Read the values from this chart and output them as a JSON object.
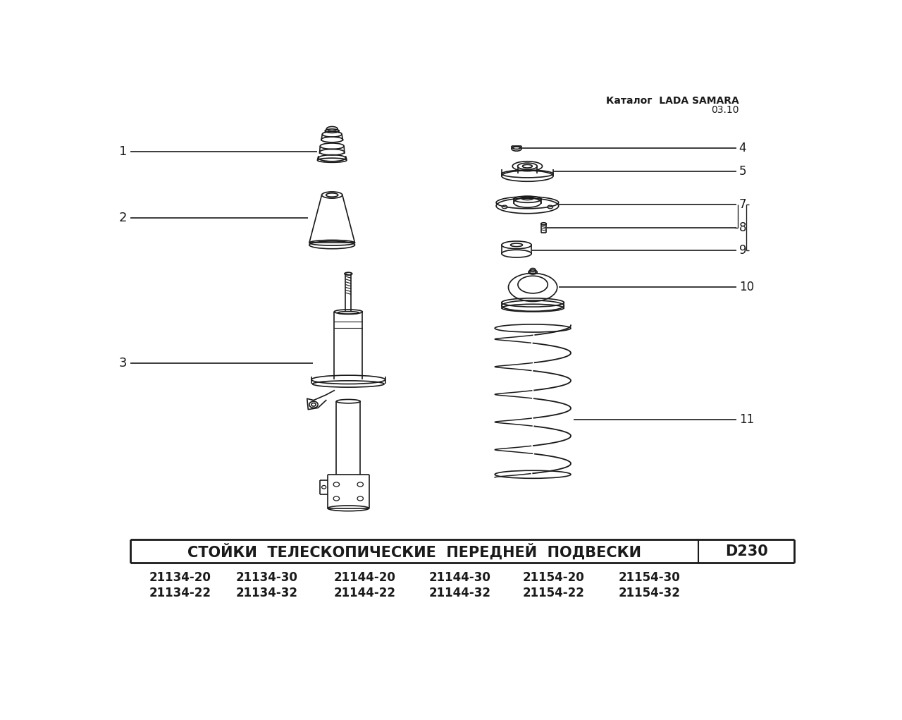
{
  "title_line1": "Каталог  LADA SAMARA",
  "title_line2": "03.10",
  "header_text": "СТОЙКИ  ТЕЛЕСКОПИЧЕСКИЕ  ПЕРЕДНЕЙ  ПОДВЕСКИ",
  "code": "D230",
  "part_numbers_row1": [
    "21134-20",
    "21134-30",
    "21144-20",
    "21144-30",
    "21154-20",
    "21154-30"
  ],
  "part_numbers_row2": [
    "21134-22",
    "21134-32",
    "21144-22",
    "21144-32",
    "21154-22",
    "21154-32"
  ],
  "bg_color": "#ffffff",
  "line_color": "#1a1a1a",
  "text_color": "#1a1a1a"
}
